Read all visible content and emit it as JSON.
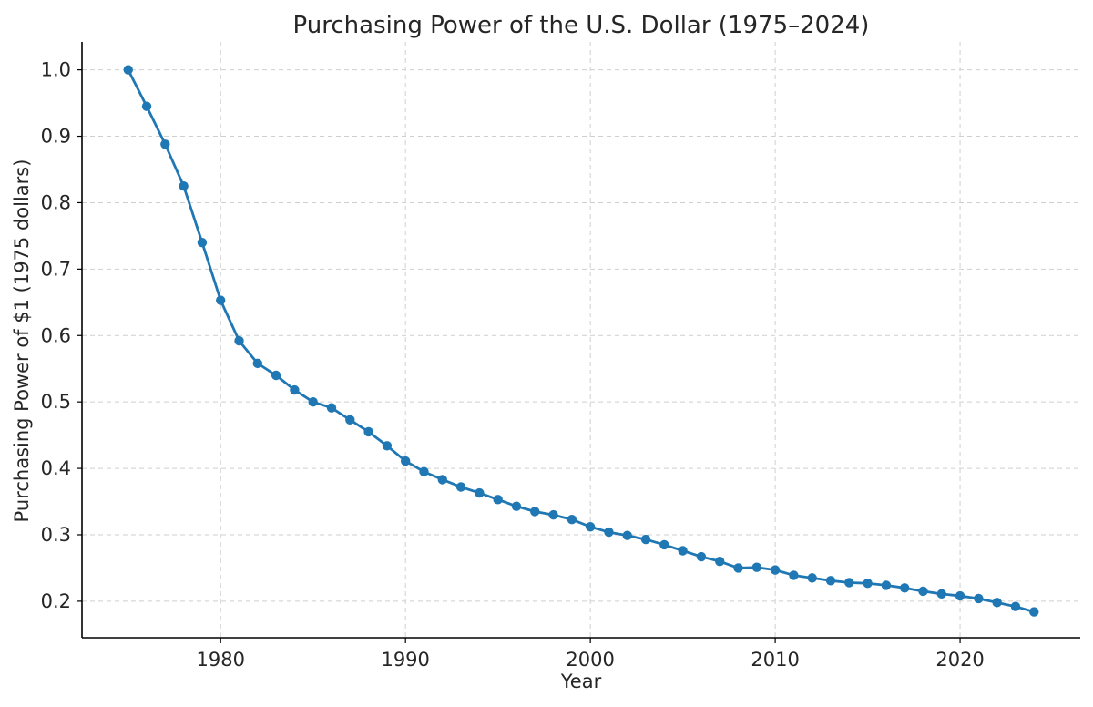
{
  "chart_data": {
    "type": "line",
    "title": "Purchasing Power of the U.S. Dollar (1975–2024)",
    "xlabel": "Year",
    "ylabel": "Purchasing Power of $1 (1975 dollars)",
    "xlim": [
      1972.5,
      2026.5
    ],
    "ylim": [
      0.145,
      1.042
    ],
    "xticks": [
      1980,
      1990,
      2000,
      2010,
      2020
    ],
    "yticks": [
      0.2,
      0.3,
      0.4,
      0.5,
      0.6,
      0.7,
      0.8,
      0.9,
      1.0
    ],
    "ytick_labels": [
      "0.2",
      "0.3",
      "0.4",
      "0.5",
      "0.6",
      "0.7",
      "0.8",
      "0.9",
      "1.0"
    ],
    "grid": true,
    "series": [
      {
        "name": "Purchasing Power",
        "color": "#1f77b4",
        "x": [
          1975,
          1976,
          1977,
          1978,
          1979,
          1980,
          1981,
          1982,
          1983,
          1984,
          1985,
          1986,
          1987,
          1988,
          1989,
          1990,
          1991,
          1992,
          1993,
          1994,
          1995,
          1996,
          1997,
          1998,
          1999,
          2000,
          2001,
          2002,
          2003,
          2004,
          2005,
          2006,
          2007,
          2008,
          2009,
          2010,
          2011,
          2012,
          2013,
          2014,
          2015,
          2016,
          2017,
          2018,
          2019,
          2020,
          2021,
          2022,
          2023,
          2024
        ],
        "y": [
          1.0,
          0.945,
          0.888,
          0.825,
          0.74,
          0.653,
          0.592,
          0.558,
          0.54,
          0.518,
          0.5,
          0.491,
          0.473,
          0.455,
          0.434,
          0.411,
          0.395,
          0.383,
          0.372,
          0.363,
          0.353,
          0.343,
          0.335,
          0.33,
          0.323,
          0.312,
          0.304,
          0.299,
          0.293,
          0.285,
          0.276,
          0.267,
          0.26,
          0.25,
          0.251,
          0.247,
          0.239,
          0.235,
          0.231,
          0.228,
          0.227,
          0.224,
          0.22,
          0.215,
          0.211,
          0.208,
          0.204,
          0.198,
          0.192,
          0.184
        ]
      }
    ]
  }
}
